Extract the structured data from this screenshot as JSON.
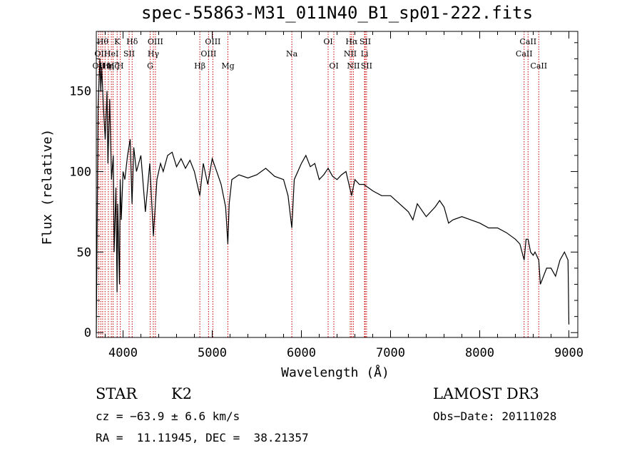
{
  "chart_data": {
    "type": "line",
    "title": "spec-55863-M31_011N40_B1_sp01-222.fits",
    "xlabel": "Wavelength (Å)",
    "ylabel": "Flux (relative)",
    "xlim": [
      3700,
      9100
    ],
    "ylim": [
      -3,
      187
    ],
    "xticks": [
      4000,
      5000,
      6000,
      7000,
      8000,
      9000
    ],
    "yticks": [
      0,
      50,
      100,
      150
    ],
    "x": [
      3700,
      3720,
      3740,
      3750,
      3760,
      3780,
      3800,
      3820,
      3830,
      3850,
      3870,
      3890,
      3900,
      3920,
      3933,
      3940,
      3960,
      3968,
      3980,
      4000,
      4020,
      4050,
      4080,
      4101,
      4120,
      4150,
      4200,
      4250,
      4300,
      4340,
      4380,
      4420,
      4450,
      4500,
      4550,
      4600,
      4650,
      4700,
      4750,
      4800,
      4861,
      4900,
      4950,
      5000,
      5050,
      5100,
      5150,
      5175,
      5190,
      5220,
      5300,
      5400,
      5500,
      5600,
      5700,
      5800,
      5850,
      5893,
      5920,
      6000,
      6050,
      6100,
      6150,
      6200,
      6250,
      6300,
      6350,
      6400,
      6450,
      6500,
      6563,
      6600,
      6650,
      6700,
      6750,
      6800,
      6900,
      7000,
      7100,
      7200,
      7250,
      7300,
      7400,
      7500,
      7550,
      7600,
      7650,
      7700,
      7800,
      7900,
      8000,
      8100,
      8200,
      8300,
      8400,
      8450,
      8498,
      8520,
      8542,
      8570,
      8600,
      8620,
      8662,
      8680,
      8750,
      8800,
      8850,
      8900,
      8950,
      8990,
      9000
    ],
    "y": [
      0,
      140,
      170,
      150,
      165,
      140,
      120,
      150,
      105,
      145,
      95,
      110,
      50,
      90,
      25,
      80,
      30,
      95,
      70,
      100,
      95,
      110,
      120,
      80,
      115,
      100,
      110,
      75,
      105,
      60,
      95,
      105,
      100,
      110,
      112,
      103,
      108,
      102,
      107,
      100,
      85,
      105,
      92,
      108,
      100,
      92,
      78,
      55,
      80,
      95,
      98,
      96,
      98,
      102,
      97,
      95,
      85,
      65,
      95,
      105,
      110,
      103,
      105,
      95,
      98,
      102,
      97,
      95,
      98,
      100,
      85,
      95,
      92,
      92,
      90,
      88,
      85,
      85,
      80,
      75,
      70,
      80,
      72,
      78,
      82,
      78,
      68,
      70,
      72,
      70,
      68,
      65,
      65,
      62,
      58,
      55,
      45,
      58,
      58,
      50,
      48,
      50,
      45,
      30,
      40,
      40,
      35,
      45,
      50,
      45,
      5
    ],
    "lines": [
      {
        "wl": 3727,
        "label": "OII",
        "row": 3
      },
      {
        "wl": 3750,
        "label": "OII",
        "row": 2
      },
      {
        "wl": 3771,
        "label": "Hθ",
        "row": 1
      },
      {
        "wl": 3798,
        "label": "Hη",
        "row": 3
      },
      {
        "wl": 3835,
        "label": "Hη",
        "row": 3
      },
      {
        "wl": 3869,
        "label": "HeI",
        "row": 2
      },
      {
        "wl": 3889,
        "label": "Hζ",
        "row": 3
      },
      {
        "wl": 3934,
        "label": "K",
        "row": 1
      },
      {
        "wl": 3969,
        "label": "H",
        "row": 3
      },
      {
        "wl": 4068,
        "label": "SII",
        "row": 2
      },
      {
        "wl": 4102,
        "label": "Hδ",
        "row": 1
      },
      {
        "wl": 4304,
        "label": "G",
        "row": 3
      },
      {
        "wl": 4340,
        "label": "Hγ",
        "row": 2
      },
      {
        "wl": 4363,
        "label": "OIII",
        "row": 1
      },
      {
        "wl": 4861,
        "label": "Hβ",
        "row": 3
      },
      {
        "wl": 4959,
        "label": "OIII",
        "row": 2
      },
      {
        "wl": 5007,
        "label": "OIII",
        "row": 1
      },
      {
        "wl": 5176,
        "label": "Mg",
        "row": 3
      },
      {
        "wl": 5893,
        "label": "Na",
        "row": 2
      },
      {
        "wl": 6300,
        "label": "OI",
        "row": 1
      },
      {
        "wl": 6364,
        "label": "OI",
        "row": 3
      },
      {
        "wl": 6548,
        "label": "NII",
        "row": 2
      },
      {
        "wl": 6563,
        "label": "Hα",
        "row": 1
      },
      {
        "wl": 6583,
        "label": "NII",
        "row": 3
      },
      {
        "wl": 6708,
        "label": "Li",
        "row": 2
      },
      {
        "wl": 6716,
        "label": "SII",
        "row": 1
      },
      {
        "wl": 6731,
        "label": "SII",
        "row": 3
      },
      {
        "wl": 8498,
        "label": "CaII",
        "row": 2
      },
      {
        "wl": 8542,
        "label": "CaII",
        "row": 1
      },
      {
        "wl": 8662,
        "label": "CaII",
        "row": 3
      }
    ]
  },
  "info": {
    "class": "STAR",
    "subclass": "K2",
    "survey": "LAMOST DR3",
    "cz": "cz = −63.9 ± 6.6 km/s",
    "obs_date": "Obs−Date: 20111028",
    "coords": "RA =  11.11945, DEC =  38.21357"
  },
  "colors": {
    "line": "#000000",
    "marker": "#cc0000"
  }
}
